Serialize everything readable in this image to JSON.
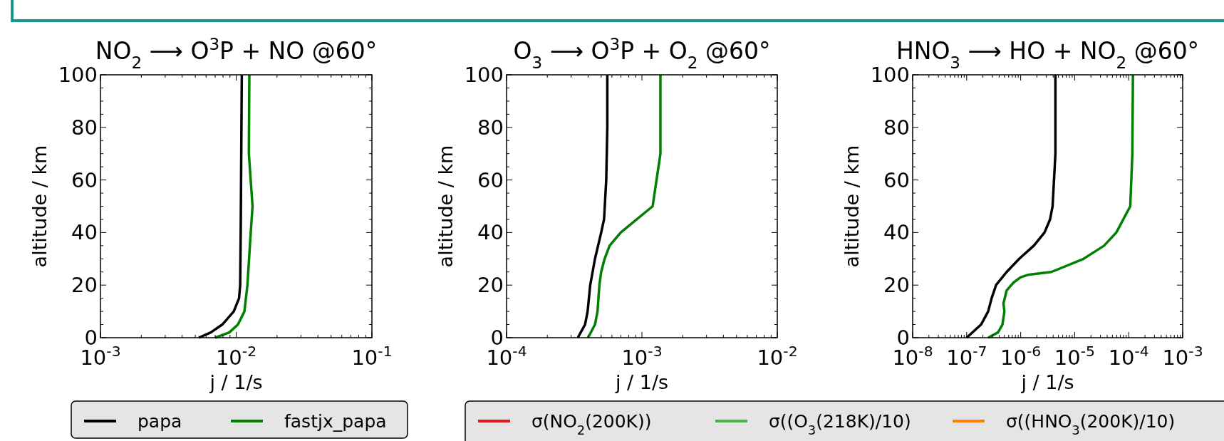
{
  "chart_data": [
    {
      "type": "line",
      "title": "NO$_{2}$ ⟶ O$^{3}$P + NO @60°",
      "xlabel": "j / 1/s",
      "ylabel": "altitude / km",
      "log": "x",
      "legend": "bottom",
      "line_style": "solid",
      "xlim": [
        0.001,
        0.1
      ],
      "xticks": [
        {
          "value": 0.001,
          "label": "10$^{-3}$"
        },
        {
          "value": 0.002,
          "label": null
        },
        {
          "value": 0.003,
          "label": null
        },
        {
          "value": 0.004,
          "label": null
        },
        {
          "value": 0.005,
          "label": null
        },
        {
          "value": 0.006,
          "label": null
        },
        {
          "value": 0.007,
          "label": null
        },
        {
          "value": 0.008,
          "label": null
        },
        {
          "value": 0.009,
          "label": null
        },
        {
          "value": 0.01,
          "label": "10$^{-2}$"
        },
        {
          "value": 0.02,
          "label": null
        },
        {
          "value": 0.03,
          "label": null
        },
        {
          "value": 0.04,
          "label": null
        },
        {
          "value": 0.05,
          "label": null
        },
        {
          "value": 0.06,
          "label": null
        },
        {
          "value": 0.07,
          "label": null
        },
        {
          "value": 0.08,
          "label": null
        },
        {
          "value": 0.09,
          "label": null
        },
        {
          "value": 0.1,
          "label": "10$^{-1}$"
        }
      ],
      "ylim": [
        0,
        100
      ],
      "yticks": [
        0,
        {
          "value": 5,
          "label": null
        },
        {
          "value": 10,
          "label": null
        },
        {
          "value": 15,
          "label": null
        },
        20,
        {
          "value": 25,
          "label": null
        },
        {
          "value": 30,
          "label": null
        },
        {
          "value": 35,
          "label": null
        },
        40,
        {
          "value": 45,
          "label": null
        },
        {
          "value": 50,
          "label": null
        },
        {
          "value": 55,
          "label": null
        },
        60,
        {
          "value": 65,
          "label": null
        },
        {
          "value": 70,
          "label": null
        },
        {
          "value": 75,
          "label": null
        },
        80,
        {
          "value": 85,
          "label": null
        },
        {
          "value": 90,
          "label": null
        },
        {
          "value": 95,
          "label": null
        },
        100
      ],
      "series": [
        {
          "name": "papa",
          "color": "#000000",
          "x": [
            0.0053,
            0.0065,
            0.0079,
            0.0096,
            0.0105,
            0.0107,
            0.0108,
            0.011
          ],
          "values": [
            0,
            2,
            5,
            10,
            15,
            20,
            40,
            100
          ]
        },
        {
          "name": "fastjx_papa",
          "color": "#008000",
          "x": [
            0.007,
            0.0089,
            0.0103,
            0.0115,
            0.0121,
            0.0128,
            0.0132,
            0.0124,
            0.0125
          ],
          "values": [
            0,
            2,
            5,
            10,
            20,
            40,
            50,
            70,
            100
          ]
        }
      ]
    },
    {
      "type": "line",
      "title": "O$_{3}$ ⟶ O$^{3}$P + O$_{2}$ @60°",
      "xlabel": "j / 1/s",
      "ylabel": "altitude / km",
      "log": "x",
      "line_style": "solid",
      "xlim": [
        0.0001,
        0.01
      ],
      "xticks": [
        {
          "value": 0.0001,
          "label": "10$^{-4}$"
        },
        {
          "value": 0.0002,
          "label": null
        },
        {
          "value": 0.0003,
          "label": null
        },
        {
          "value": 0.0004,
          "label": null
        },
        {
          "value": 0.0005,
          "label": null
        },
        {
          "value": 0.0006,
          "label": null
        },
        {
          "value": 0.0007,
          "label": null
        },
        {
          "value": 0.0008,
          "label": null
        },
        {
          "value": 0.0009,
          "label": null
        },
        {
          "value": 0.001,
          "label": "10$^{-3}$"
        },
        {
          "value": 0.002,
          "label": null
        },
        {
          "value": 0.003,
          "label": null
        },
        {
          "value": 0.004,
          "label": null
        },
        {
          "value": 0.005,
          "label": null
        },
        {
          "value": 0.006,
          "label": null
        },
        {
          "value": 0.007,
          "label": null
        },
        {
          "value": 0.008,
          "label": null
        },
        {
          "value": 0.009,
          "label": null
        },
        {
          "value": 0.01,
          "label": "10$^{-2}$"
        }
      ],
      "ylim": [
        0,
        100
      ],
      "yticks": [
        0,
        {
          "value": 5,
          "label": null
        },
        {
          "value": 10,
          "label": null
        },
        {
          "value": 15,
          "label": null
        },
        20,
        {
          "value": 25,
          "label": null
        },
        {
          "value": 30,
          "label": null
        },
        {
          "value": 35,
          "label": null
        },
        40,
        {
          "value": 45,
          "label": null
        },
        {
          "value": 50,
          "label": null
        },
        {
          "value": 55,
          "label": null
        },
        60,
        {
          "value": 65,
          "label": null
        },
        {
          "value": 70,
          "label": null
        },
        {
          "value": 75,
          "label": null
        },
        80,
        {
          "value": 85,
          "label": null
        },
        {
          "value": 90,
          "label": null
        },
        {
          "value": 95,
          "label": null
        },
        100
      ],
      "series": [
        {
          "color": "#000000",
          "x": [
            0.000336,
            0.00038,
            0.000397,
            0.000415,
            0.00045,
            0.0005,
            0.000525,
            0.000545,
            0.000555,
            0.000555
          ],
          "values": [
            0,
            5,
            10,
            20,
            30,
            40,
            45,
            60,
            80,
            100
          ]
        },
        {
          "color": "#008000",
          "x": [
            0.0004,
            0.00045,
            0.00047,
            0.000485,
            0.0005,
            0.00053,
            0.000577,
            0.000697,
            0.0012,
            0.00137,
            0.00137
          ],
          "values": [
            0,
            5,
            10,
            20,
            25,
            30,
            35,
            40,
            50,
            70,
            100
          ]
        }
      ]
    },
    {
      "type": "line",
      "title": "HNO$_{3}$ ⟶ HO + NO$_{2}$ @60°",
      "xlabel": "j / 1/s",
      "ylabel": "altitude / km",
      "log": "x",
      "line_style": "solid",
      "xlim": [
        1e-08,
        0.001
      ],
      "xticks": [
        {
          "value": 1e-08,
          "label": "10$^{-8}$"
        },
        {
          "value": 2e-08,
          "label": null
        },
        {
          "value": 3e-08,
          "label": null
        },
        {
          "value": 4e-08,
          "label": null
        },
        {
          "value": 5e-08,
          "label": null
        },
        {
          "value": 6e-08,
          "label": null
        },
        {
          "value": 7e-08,
          "label": null
        },
        {
          "value": 8e-08,
          "label": null
        },
        {
          "value": 9e-08,
          "label": null
        },
        {
          "value": 1e-07,
          "label": "10$^{-7}$"
        },
        {
          "value": 2e-07,
          "label": null
        },
        {
          "value": 3e-07,
          "label": null
        },
        {
          "value": 4e-07,
          "label": null
        },
        {
          "value": 5e-07,
          "label": null
        },
        {
          "value": 6e-07,
          "label": null
        },
        {
          "value": 7e-07,
          "label": null
        },
        {
          "value": 8e-07,
          "label": null
        },
        {
          "value": 9e-07,
          "label": null
        },
        {
          "value": 1e-06,
          "label": "10$^{-6}$"
        },
        {
          "value": 2e-06,
          "label": null
        },
        {
          "value": 3e-06,
          "label": null
        },
        {
          "value": 4e-06,
          "label": null
        },
        {
          "value": 5e-06,
          "label": null
        },
        {
          "value": 6e-06,
          "label": null
        },
        {
          "value": 7e-06,
          "label": null
        },
        {
          "value": 8e-06,
          "label": null
        },
        {
          "value": 9e-06,
          "label": null
        },
        {
          "value": 1e-05,
          "label": "10$^{-5}$"
        },
        {
          "value": 2e-05,
          "label": null
        },
        {
          "value": 3e-05,
          "label": null
        },
        {
          "value": 4e-05,
          "label": null
        },
        {
          "value": 5e-05,
          "label": null
        },
        {
          "value": 6e-05,
          "label": null
        },
        {
          "value": 7e-05,
          "label": null
        },
        {
          "value": 8e-05,
          "label": null
        },
        {
          "value": 9e-05,
          "label": null
        },
        {
          "value": 0.0001,
          "label": "10$^{-4}$"
        },
        {
          "value": 0.0002,
          "label": null
        },
        {
          "value": 0.0003,
          "label": null
        },
        {
          "value": 0.0004,
          "label": null
        },
        {
          "value": 0.0005,
          "label": null
        },
        {
          "value": 0.0006,
          "label": null
        },
        {
          "value": 0.0007,
          "label": null
        },
        {
          "value": 0.0008,
          "label": null
        },
        {
          "value": 0.0009,
          "label": null
        },
        {
          "value": 0.001,
          "label": "10$^{-3}$"
        }
      ],
      "ylim": [
        0,
        100
      ],
      "yticks": [
        0,
        {
          "value": 5,
          "label": null
        },
        {
          "value": 10,
          "label": null
        },
        {
          "value": 15,
          "label": null
        },
        20,
        {
          "value": 25,
          "label": null
        },
        {
          "value": 30,
          "label": null
        },
        {
          "value": 35,
          "label": null
        },
        40,
        {
          "value": 45,
          "label": null
        },
        {
          "value": 50,
          "label": null
        },
        {
          "value": 55,
          "label": null
        },
        60,
        {
          "value": 65,
          "label": null
        },
        {
          "value": 70,
          "label": null
        },
        {
          "value": 75,
          "label": null
        },
        80,
        {
          "value": 85,
          "label": null
        },
        {
          "value": 90,
          "label": null
        },
        {
          "value": 95,
          "label": null
        },
        100
      ],
      "series": [
        {
          "color": "#000000",
          "x": [
            1e-07,
            1.85e-07,
            2.5e-07,
            2.9e-07,
            3.5e-07,
            5.5e-07,
            9.4e-07,
            1.75e-06,
            2.76e-06,
            3.5e-06,
            3.9e-06,
            4.4e-06,
            4.4e-06
          ],
          "values": [
            0,
            5,
            10,
            15,
            20,
            25,
            30,
            35,
            40,
            45,
            50,
            70,
            100
          ]
        },
        {
          "color": "#008000",
          "x": [
            2.5e-07,
            3.8e-07,
            4.6e-07,
            5e-07,
            4.8e-07,
            5.5e-07,
            7.4e-07,
            1e-06,
            1.43e-06,
            3.7e-06,
            1.46e-05,
            3.5e-05,
            5.9e-05,
            0.000107,
            0.000117,
            0.00012
          ],
          "values": [
            0,
            2,
            5,
            10,
            13,
            18,
            21,
            23,
            24,
            25,
            30,
            35,
            40,
            50,
            70,
            100
          ]
        }
      ]
    },
    {
      "type": "other",
      "legend": "bottom",
      "series": [
        {
          "name": "σ(NO$_{2}$(200K))",
          "color": "#e41a1c"
        },
        {
          "name": "σ((O$_{3}$(218K)/10)",
          "color": "#4daf4a"
        },
        {
          "name": "σ((HNO$_{3}$(200K)/10)",
          "color": "#ff7f00"
        }
      ]
    }
  ]
}
